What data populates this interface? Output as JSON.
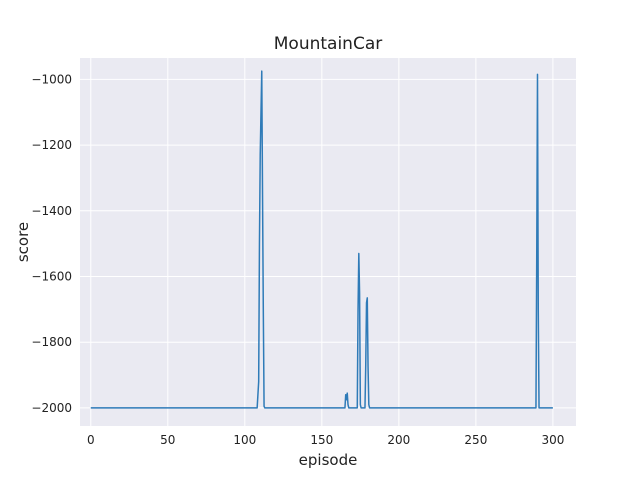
{
  "chart_data": {
    "type": "line",
    "title": "MountainCar",
    "xlabel": "episode",
    "ylabel": "score",
    "xlim": [
      -7,
      315
    ],
    "ylim": [
      -2055,
      -935
    ],
    "xticks": [
      0,
      50,
      100,
      150,
      200,
      250,
      300
    ],
    "yticks": [
      -2000,
      -1800,
      -1600,
      -1400,
      -1200,
      -1000
    ],
    "grid": true,
    "colors": {
      "background": "#eaeaf2",
      "grid": "#ffffff",
      "line": "#2f7bb8"
    },
    "series": [
      {
        "points": [
          [
            0,
            -2000
          ],
          [
            108,
            -2000
          ],
          [
            109,
            -1920
          ],
          [
            109.5,
            -1500
          ],
          [
            110,
            -1230
          ],
          [
            110.5,
            -1100
          ],
          [
            111,
            -975
          ],
          [
            111.5,
            -1350
          ],
          [
            112,
            -1700
          ],
          [
            112.5,
            -1995
          ],
          [
            113,
            -2000
          ],
          [
            165,
            -2000
          ],
          [
            165.5,
            -1960
          ],
          [
            166,
            -1975
          ],
          [
            166.5,
            -1955
          ],
          [
            167,
            -1990
          ],
          [
            167.5,
            -2000
          ],
          [
            173,
            -2000
          ],
          [
            173.5,
            -1700
          ],
          [
            174,
            -1530
          ],
          [
            174.5,
            -1650
          ],
          [
            175,
            -1990
          ],
          [
            175.5,
            -2000
          ],
          [
            178,
            -2000
          ],
          [
            178.5,
            -1870
          ],
          [
            179,
            -1680
          ],
          [
            179.5,
            -1665
          ],
          [
            180,
            -1875
          ],
          [
            180.5,
            -1990
          ],
          [
            181,
            -2000
          ],
          [
            289,
            -2000
          ],
          [
            289.5,
            -1550
          ],
          [
            290,
            -985
          ],
          [
            290.5,
            -1700
          ],
          [
            291,
            -2000
          ],
          [
            300,
            -2000
          ]
        ]
      }
    ]
  }
}
